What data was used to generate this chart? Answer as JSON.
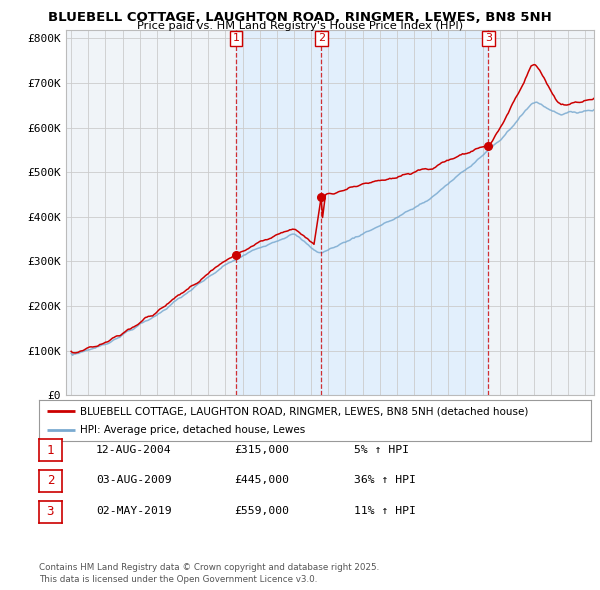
{
  "title": "BLUEBELL COTTAGE, LAUGHTON ROAD, RINGMER, LEWES, BN8 5NH",
  "subtitle": "Price paid vs. HM Land Registry's House Price Index (HPI)",
  "ylabel_ticks": [
    "£0",
    "£100K",
    "£200K",
    "£300K",
    "£400K",
    "£500K",
    "£600K",
    "£700K",
    "£800K"
  ],
  "ytick_values": [
    0,
    100000,
    200000,
    300000,
    400000,
    500000,
    600000,
    700000,
    800000
  ],
  "ylim": [
    0,
    820000
  ],
  "xlim_start": 1994.7,
  "xlim_end": 2025.5,
  "red_color": "#cc0000",
  "blue_color": "#7aaad0",
  "vline_color": "#cc0000",
  "shade_color": "#ddeeff",
  "sale_dates": [
    2004.617,
    2009.587,
    2019.333
  ],
  "sale_prices": [
    315000,
    445000,
    559000
  ],
  "sale_labels": [
    "1",
    "2",
    "3"
  ],
  "legend_red": "BLUEBELL COTTAGE, LAUGHTON ROAD, RINGMER, LEWES, BN8 5NH (detached house)",
  "legend_blue": "HPI: Average price, detached house, Lewes",
  "table_entries": [
    {
      "num": "1",
      "date": "12-AUG-2004",
      "price": "£315,000",
      "pct": "5% ↑ HPI"
    },
    {
      "num": "2",
      "date": "03-AUG-2009",
      "price": "£445,000",
      "pct": "36% ↑ HPI"
    },
    {
      "num": "3",
      "date": "02-MAY-2019",
      "price": "£559,000",
      "pct": "11% ↑ HPI"
    }
  ],
  "footnote": "Contains HM Land Registry data © Crown copyright and database right 2025.\nThis data is licensed under the Open Government Licence v3.0.",
  "background_color": "#ffffff",
  "plot_bg_color": "#f0f4f8",
  "grid_color": "#cccccc"
}
